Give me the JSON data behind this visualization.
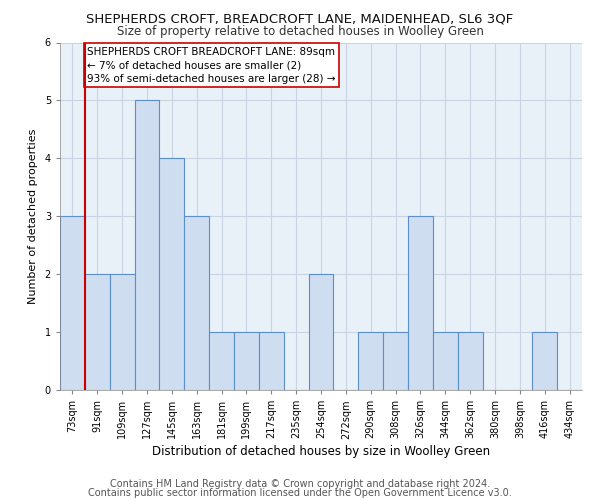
{
  "title": "SHEPHERDS CROFT, BREADCROFT LANE, MAIDENHEAD, SL6 3QF",
  "subtitle": "Size of property relative to detached houses in Woolley Green",
  "xlabel": "Distribution of detached houses by size in Woolley Green",
  "ylabel": "Number of detached properties",
  "categories": [
    "73sqm",
    "91sqm",
    "109sqm",
    "127sqm",
    "145sqm",
    "163sqm",
    "181sqm",
    "199sqm",
    "217sqm",
    "235sqm",
    "254sqm",
    "272sqm",
    "290sqm",
    "308sqm",
    "326sqm",
    "344sqm",
    "362sqm",
    "380sqm",
    "398sqm",
    "416sqm",
    "434sqm"
  ],
  "values": [
    3,
    2,
    2,
    5,
    4,
    3,
    1,
    1,
    1,
    0,
    2,
    0,
    1,
    1,
    3,
    1,
    1,
    0,
    0,
    1,
    0
  ],
  "bar_color": "#cfddf0",
  "bar_edge_color": "#5b8fcc",
  "bar_linewidth": 0.8,
  "property_line_index": 1,
  "property_line_color": "#cc0000",
  "annotation_text": "SHEPHERDS CROFT BREADCROFT LANE: 89sqm\n← 7% of detached houses are smaller (2)\n93% of semi-detached houses are larger (28) →",
  "annotation_box_edgecolor": "#cc0000",
  "ylim": [
    0,
    6
  ],
  "yticks": [
    0,
    1,
    2,
    3,
    4,
    5,
    6
  ],
  "footer_line1": "Contains HM Land Registry data © Crown copyright and database right 2024.",
  "footer_line2": "Contains public sector information licensed under the Open Government Licence v3.0.",
  "plot_bg_color": "#e8f0f8",
  "fig_bg_color": "#ffffff",
  "grid_color": "#c8d4e4",
  "title_fontsize": 9.5,
  "subtitle_fontsize": 8.5,
  "tick_fontsize": 7,
  "ylabel_fontsize": 8,
  "xlabel_fontsize": 8.5,
  "footer_fontsize": 7,
  "annotation_fontsize": 7.5
}
